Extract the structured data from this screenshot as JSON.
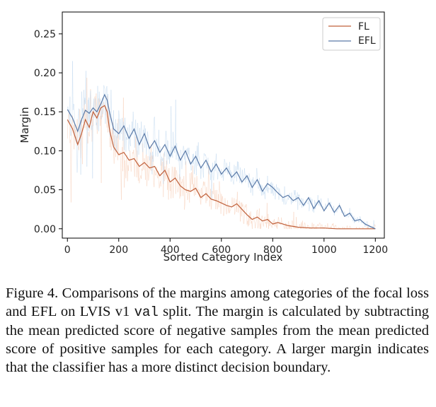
{
  "chart_data": {
    "type": "line",
    "xlabel": "Sorted Category Index",
    "ylabel": "Margin",
    "xlim": [
      -20,
      1235
    ],
    "ylim": [
      -0.012,
      0.278
    ],
    "xticks": [
      0,
      200,
      400,
      600,
      800,
      1000,
      1200
    ],
    "yticks": [
      0.0,
      0.05,
      0.1,
      0.15,
      0.2,
      0.25
    ],
    "xtick_labels": [
      "0",
      "200",
      "400",
      "600",
      "800",
      "1000",
      "1200"
    ],
    "ytick_labels": [
      "0.00",
      "0.05",
      "0.10",
      "0.15",
      "0.20",
      "0.25"
    ],
    "grid": false,
    "legend_position": "top-right",
    "series": [
      {
        "name": "FL",
        "color": "#c0603a",
        "band_color": "#f5c8ae",
        "x": [
          0,
          20,
          40,
          55,
          70,
          85,
          100,
          115,
          130,
          145,
          155,
          165,
          180,
          200,
          220,
          240,
          260,
          280,
          300,
          320,
          340,
          360,
          380,
          400,
          420,
          440,
          460,
          480,
          500,
          520,
          540,
          560,
          580,
          600,
          620,
          640,
          660,
          680,
          700,
          720,
          740,
          760,
          780,
          800,
          820,
          840,
          860,
          880,
          900,
          950,
          1000,
          1050,
          1100,
          1150,
          1200
        ],
        "values": [
          0.14,
          0.128,
          0.108,
          0.122,
          0.14,
          0.13,
          0.15,
          0.142,
          0.155,
          0.158,
          0.15,
          0.125,
          0.105,
          0.095,
          0.098,
          0.088,
          0.09,
          0.08,
          0.085,
          0.078,
          0.08,
          0.068,
          0.075,
          0.06,
          0.065,
          0.055,
          0.05,
          0.048,
          0.052,
          0.04,
          0.045,
          0.038,
          0.036,
          0.033,
          0.03,
          0.028,
          0.032,
          0.025,
          0.018,
          0.012,
          0.015,
          0.01,
          0.012,
          0.006,
          0.008,
          0.006,
          0.004,
          0.003,
          0.002,
          0.001,
          0.001,
          0.0,
          0.0,
          0.0,
          0.0
        ]
      },
      {
        "name": "EFL",
        "color": "#5a7aa8",
        "band_color": "#b8d4ec",
        "x": [
          0,
          20,
          40,
          55,
          70,
          85,
          100,
          115,
          130,
          145,
          155,
          165,
          180,
          200,
          220,
          240,
          260,
          280,
          300,
          320,
          340,
          360,
          380,
          400,
          420,
          440,
          460,
          480,
          500,
          520,
          540,
          560,
          580,
          600,
          620,
          640,
          660,
          680,
          700,
          720,
          740,
          760,
          780,
          800,
          820,
          840,
          860,
          880,
          900,
          920,
          940,
          960,
          980,
          1000,
          1020,
          1040,
          1060,
          1080,
          1100,
          1120,
          1140,
          1160,
          1180,
          1200
        ],
        "values": [
          0.153,
          0.142,
          0.125,
          0.14,
          0.152,
          0.148,
          0.155,
          0.15,
          0.16,
          0.172,
          0.165,
          0.148,
          0.128,
          0.122,
          0.132,
          0.116,
          0.128,
          0.108,
          0.122,
          0.103,
          0.113,
          0.098,
          0.108,
          0.093,
          0.106,
          0.088,
          0.1,
          0.083,
          0.093,
          0.078,
          0.088,
          0.073,
          0.083,
          0.07,
          0.078,
          0.066,
          0.073,
          0.06,
          0.068,
          0.053,
          0.063,
          0.048,
          0.058,
          0.053,
          0.046,
          0.04,
          0.043,
          0.036,
          0.04,
          0.03,
          0.04,
          0.026,
          0.036,
          0.023,
          0.033,
          0.021,
          0.03,
          0.016,
          0.02,
          0.01,
          0.012,
          0.006,
          0.003,
          0.0
        ]
      }
    ]
  },
  "caption": {
    "lead": "Figure 4.  Comparisons of the margins among categories of the focal loss and EFL on LVIS v1 ",
    "code": "val",
    "tail": " split. The margin is calculated by subtracting the mean predicted score of negative samples from the mean predicted score of positive samples for each category. A larger margin indicates that the classifier has a more distinct decision boundary."
  }
}
